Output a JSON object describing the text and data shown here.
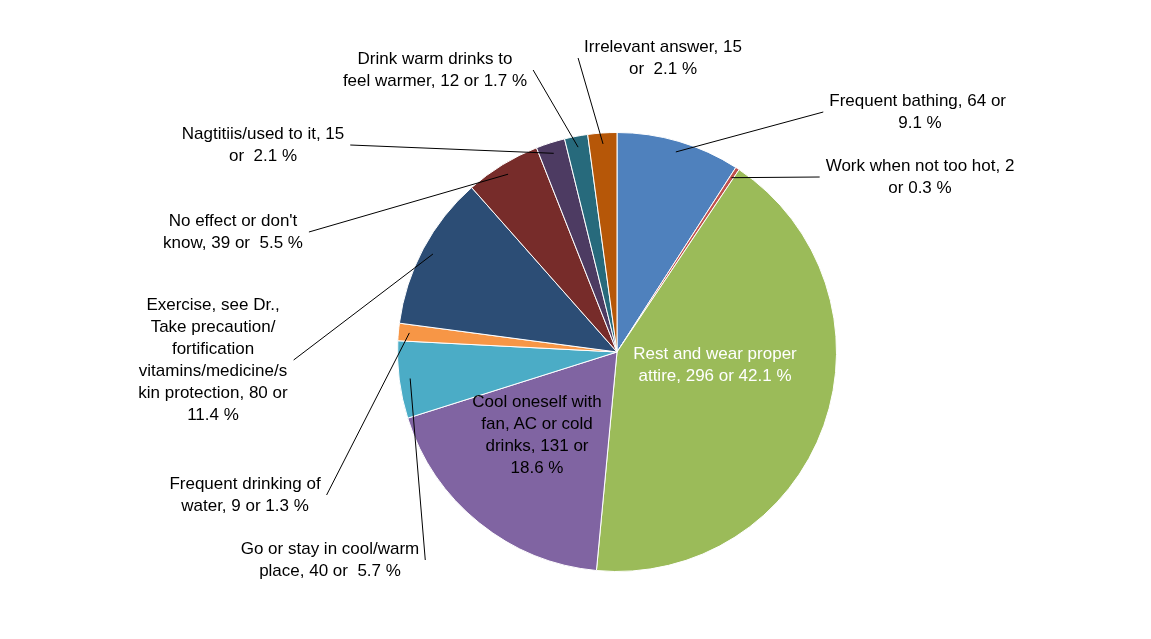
{
  "chart_data": {
    "type": "pie",
    "categories": [
      "Frequent bathing",
      "Work when not too hot",
      "Rest and wear proper attire",
      "Cool oneself with fan, AC or cold drinks",
      "Go or stay in cool/warm place",
      "Frequent drinking of water",
      "Exercise, see Dr., Take precaution/ fortification vitamins/medicine/s kin protection",
      "No effect or don't know",
      "Nagtitiis/used to it",
      "Drink warm drinks to feel warmer",
      "Irrelevant answer"
    ],
    "values": [
      64,
      2,
      296,
      131,
      40,
      9,
      80,
      39,
      15,
      12,
      15
    ],
    "value_labels": [
      "64 or  9.1 %",
      "2 or 0.3 %",
      "296 or 42.1 %",
      "131 or 18.6 %",
      "40 or  5.7 %",
      "9 or 1.3 %",
      "80 or 11.4 %",
      "39 or  5.5 %",
      "15 or  2.1 %",
      "12 or 1.7 %",
      "15 or  2.1 %"
    ],
    "colors": [
      "#4f81bd",
      "#c0504d",
      "#9bbb59",
      "#8064a2",
      "#4bacc6",
      "#f79646",
      "#2c4d75",
      "#772c2a",
      "#4d3b62",
      "#276a7c",
      "#b65708"
    ],
    "legend": false
  }
}
